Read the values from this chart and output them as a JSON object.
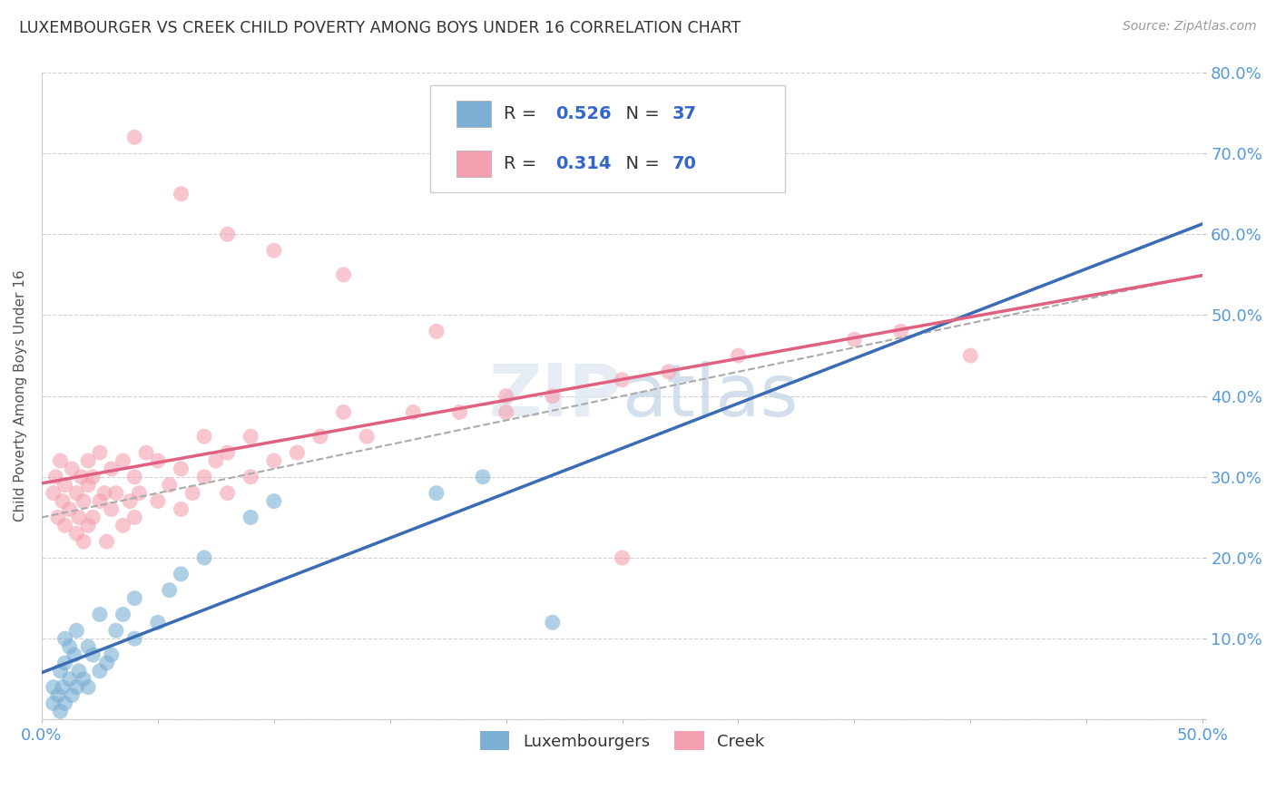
{
  "title": "LUXEMBOURGER VS CREEK CHILD POVERTY AMONG BOYS UNDER 16 CORRELATION CHART",
  "source": "Source: ZipAtlas.com",
  "ylabel": "Child Poverty Among Boys Under 16",
  "xlim": [
    0.0,
    0.5
  ],
  "ylim": [
    0.0,
    0.8
  ],
  "blue_color": "#7BAFD4",
  "pink_color": "#F4A0B0",
  "blue_line_color": "#3B6BB5",
  "pink_line_color": "#E06080",
  "gray_line_color": "#AAAAAA",
  "blue_R": 0.526,
  "blue_N": 37,
  "pink_R": 0.314,
  "pink_N": 70,
  "legend_label_blue": "Luxembourgers",
  "legend_label_pink": "Creek",
  "background_color": "#FFFFFF",
  "grid_color": "#CCCCCC",
  "blue_scatter_x": [
    0.005,
    0.005,
    0.007,
    0.008,
    0.008,
    0.009,
    0.01,
    0.01,
    0.01,
    0.012,
    0.012,
    0.013,
    0.014,
    0.015,
    0.015,
    0.016,
    0.018,
    0.02,
    0.02,
    0.022,
    0.025,
    0.025,
    0.028,
    0.03,
    0.032,
    0.035,
    0.04,
    0.04,
    0.05,
    0.055,
    0.06,
    0.07,
    0.09,
    0.1,
    0.17,
    0.19,
    0.22
  ],
  "blue_scatter_y": [
    0.02,
    0.04,
    0.03,
    0.01,
    0.06,
    0.04,
    0.02,
    0.07,
    0.1,
    0.05,
    0.09,
    0.03,
    0.08,
    0.04,
    0.11,
    0.06,
    0.05,
    0.04,
    0.09,
    0.08,
    0.06,
    0.13,
    0.07,
    0.08,
    0.11,
    0.13,
    0.1,
    0.15,
    0.12,
    0.16,
    0.18,
    0.2,
    0.25,
    0.27,
    0.28,
    0.3,
    0.12
  ],
  "pink_scatter_x": [
    0.005,
    0.006,
    0.007,
    0.008,
    0.009,
    0.01,
    0.01,
    0.012,
    0.013,
    0.015,
    0.015,
    0.016,
    0.017,
    0.018,
    0.018,
    0.02,
    0.02,
    0.02,
    0.022,
    0.022,
    0.025,
    0.025,
    0.027,
    0.028,
    0.03,
    0.03,
    0.032,
    0.035,
    0.035,
    0.038,
    0.04,
    0.04,
    0.042,
    0.045,
    0.05,
    0.05,
    0.055,
    0.06,
    0.06,
    0.065,
    0.07,
    0.07,
    0.075,
    0.08,
    0.08,
    0.09,
    0.09,
    0.1,
    0.11,
    0.12,
    0.13,
    0.14,
    0.16,
    0.18,
    0.2,
    0.22,
    0.25,
    0.27,
    0.3,
    0.35,
    0.37,
    0.4,
    0.25,
    0.13,
    0.17,
    0.2,
    0.1,
    0.08,
    0.06,
    0.04
  ],
  "pink_scatter_y": [
    0.28,
    0.3,
    0.25,
    0.32,
    0.27,
    0.24,
    0.29,
    0.26,
    0.31,
    0.23,
    0.28,
    0.25,
    0.3,
    0.22,
    0.27,
    0.24,
    0.29,
    0.32,
    0.25,
    0.3,
    0.27,
    0.33,
    0.28,
    0.22,
    0.26,
    0.31,
    0.28,
    0.24,
    0.32,
    0.27,
    0.25,
    0.3,
    0.28,
    0.33,
    0.27,
    0.32,
    0.29,
    0.26,
    0.31,
    0.28,
    0.3,
    0.35,
    0.32,
    0.28,
    0.33,
    0.3,
    0.35,
    0.32,
    0.33,
    0.35,
    0.38,
    0.35,
    0.38,
    0.38,
    0.4,
    0.4,
    0.42,
    0.43,
    0.45,
    0.47,
    0.48,
    0.45,
    0.2,
    0.55,
    0.48,
    0.38,
    0.58,
    0.6,
    0.65,
    0.72
  ]
}
